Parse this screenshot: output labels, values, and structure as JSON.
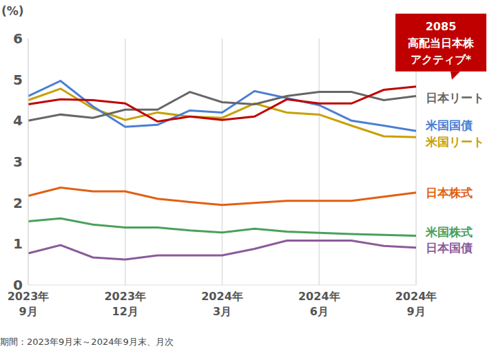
{
  "chart_data": {
    "type": "line",
    "y_label": "(%)",
    "footnote": "期間：2023年9月末～2024年9月末、月次",
    "categories": [
      "2023年\n9月",
      null,
      null,
      "2023年\n12月",
      null,
      null,
      "2024年\n3月",
      null,
      null,
      "2024年\n6月",
      null,
      null,
      "2024年\n9月"
    ],
    "ylim": [
      0,
      6
    ],
    "yticks": [
      0,
      1,
      2,
      3,
      4,
      5,
      6
    ],
    "grid": true,
    "series": [
      {
        "name": "2085\n高配当日本株\nアクティブ*",
        "color": "#c00000",
        "values": [
          4.4,
          4.52,
          4.5,
          4.42,
          3.98,
          4.1,
          4.02,
          4.1,
          4.52,
          4.42,
          4.42,
          4.75,
          4.83
        ]
      },
      {
        "name": "日本リート",
        "color": "#666666",
        "values": [
          4.0,
          4.15,
          4.07,
          4.27,
          4.27,
          4.7,
          4.45,
          4.4,
          4.6,
          4.7,
          4.7,
          4.5,
          4.6
        ]
      },
      {
        "name": "米国国債",
        "color": "#4a7fd4",
        "values": [
          4.6,
          4.97,
          4.35,
          3.85,
          3.9,
          4.25,
          4.2,
          4.72,
          4.55,
          4.38,
          4.0,
          3.88,
          3.75
        ]
      },
      {
        "name": "米国リート",
        "color": "#c8a000",
        "values": [
          4.5,
          4.78,
          4.3,
          4.02,
          4.2,
          4.1,
          4.07,
          4.42,
          4.2,
          4.15,
          3.88,
          3.62,
          3.6
        ]
      },
      {
        "name": "日本株式",
        "color": "#e06010",
        "values": [
          2.17,
          2.37,
          2.28,
          2.28,
          2.1,
          2.02,
          1.95,
          2.0,
          2.05,
          2.05,
          2.05,
          2.15,
          2.25
        ]
      },
      {
        "name": "米国株式",
        "color": "#4aa05a",
        "values": [
          1.55,
          1.62,
          1.47,
          1.4,
          1.4,
          1.33,
          1.28,
          1.37,
          1.3,
          1.27,
          1.24,
          1.22,
          1.2
        ]
      },
      {
        "name": "日本国債",
        "color": "#8a5a9a",
        "values": [
          0.77,
          0.97,
          0.67,
          0.62,
          0.72,
          0.72,
          0.72,
          0.88,
          1.08,
          1.08,
          1.08,
          0.95,
          0.91
        ]
      }
    ]
  }
}
